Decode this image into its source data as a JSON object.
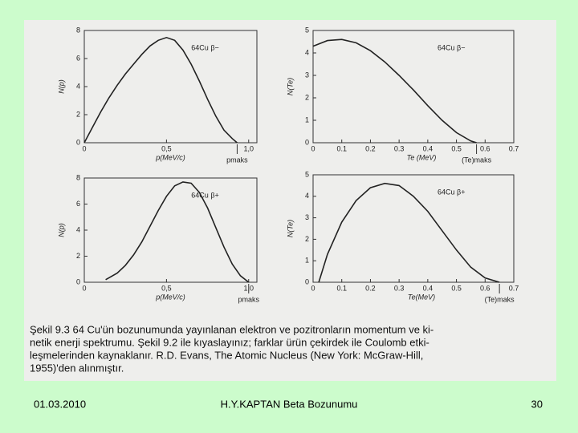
{
  "chart_data": [
    {
      "type": "line",
      "label": "64Cu β−",
      "xlabel": "p(MeV/c)",
      "ylabel": "N(p)",
      "annotation": "pmaks",
      "x": [
        0,
        0.05,
        0.1,
        0.15,
        0.2,
        0.25,
        0.3,
        0.35,
        0.4,
        0.45,
        0.5,
        0.55,
        0.6,
        0.65,
        0.7,
        0.75,
        0.8,
        0.85,
        0.9,
        0.93
      ],
      "values": [
        0,
        1.1,
        2.2,
        3.2,
        4.1,
        4.9,
        5.6,
        6.3,
        6.9,
        7.3,
        7.5,
        7.3,
        6.6,
        5.6,
        4.4,
        3.1,
        1.9,
        0.9,
        0.3,
        0
      ],
      "xlim": [
        0,
        1.05
      ],
      "ylim": [
        0,
        8
      ],
      "xticks": [
        0,
        {
          "value": 0.5,
          "label": "0,5"
        },
        {
          "value": 1,
          "label": "1,0"
        }
      ],
      "yticks": [
        0,
        2,
        4,
        6,
        8
      ]
    },
    {
      "type": "line",
      "label": "64Cu β−",
      "xlabel": "Te (MeV)",
      "ylabel": "N(Te)",
      "annotation": "(Te)maks",
      "x": [
        0,
        0.05,
        0.1,
        0.15,
        0.2,
        0.25,
        0.3,
        0.35,
        0.4,
        0.45,
        0.5,
        0.55,
        0.57
      ],
      "values": [
        4.3,
        4.55,
        4.6,
        4.45,
        4.1,
        3.6,
        3.0,
        2.35,
        1.65,
        1.0,
        0.45,
        0.08,
        0
      ],
      "xlim": [
        0,
        0.7
      ],
      "ylim": [
        0,
        5
      ],
      "xticks": [
        0,
        0.1,
        0.2,
        0.3,
        0.4,
        0.5,
        0.6,
        0.7
      ],
      "yticks": [
        0,
        1,
        2,
        3,
        4,
        5
      ]
    },
    {
      "type": "line",
      "label": "64Cu β+",
      "xlabel": "p(MeV/c)",
      "ylabel": "N(p)",
      "annotation": "pmaks",
      "x": [
        0.13,
        0.2,
        0.25,
        0.3,
        0.35,
        0.4,
        0.45,
        0.5,
        0.55,
        0.6,
        0.65,
        0.7,
        0.75,
        0.8,
        0.85,
        0.9,
        0.95,
        1.0
      ],
      "values": [
        0.2,
        0.7,
        1.3,
        2.1,
        3.1,
        4.3,
        5.5,
        6.6,
        7.4,
        7.7,
        7.6,
        6.9,
        5.7,
        4.2,
        2.7,
        1.4,
        0.5,
        0
      ],
      "xlim": [
        0,
        1.05
      ],
      "ylim": [
        0,
        8
      ],
      "xticks": [
        0,
        {
          "value": 0.5,
          "label": "0,5"
        },
        {
          "value": 1,
          "label": "1,0"
        }
      ],
      "yticks": [
        0,
        2,
        4,
        6,
        8
      ]
    },
    {
      "type": "line",
      "label": "64Cu β+",
      "xlabel": "Te(MeV)",
      "ylabel": "N(Te)",
      "annotation": "(Te)maks",
      "x": [
        0.02,
        0.05,
        0.1,
        0.15,
        0.2,
        0.25,
        0.3,
        0.35,
        0.4,
        0.45,
        0.5,
        0.55,
        0.6,
        0.65
      ],
      "values": [
        0,
        1.3,
        2.8,
        3.8,
        4.4,
        4.6,
        4.5,
        4.0,
        3.3,
        2.4,
        1.5,
        0.7,
        0.2,
        0
      ],
      "xlim": [
        0,
        0.7
      ],
      "ylim": [
        0,
        5
      ],
      "xticks": [
        0,
        0.1,
        0.2,
        0.3,
        0.4,
        0.5,
        0.6,
        0.7
      ],
      "yticks": [
        0,
        1,
        2,
        3,
        4,
        5
      ]
    }
  ],
  "caption": [
    "Şekil 9.3 64 Cu'ün bozunumunda yayınlanan elektron ve pozitronların momentum ve ki-",
    "netik enerji spektrumu. Şekil 9.2 ile kıyaslayınız; farklar ürün çekirdek ile Coulomb etki-",
    "leşmelerinden kaynaklanır. R.D. Evans, The Atomic Nucleus (New York: McGraw-Hill,",
    "1955)'den alınmıştır."
  ],
  "footer": {
    "date": "01.03.2010",
    "title": "H.Y.KAPTAN  Beta Bozunumu",
    "page": "30"
  }
}
